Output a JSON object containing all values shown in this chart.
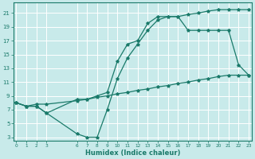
{
  "line1_x": [
    0,
    1,
    2,
    3,
    6,
    7,
    8,
    9,
    10,
    11,
    12,
    13,
    14,
    15,
    16,
    17,
    18,
    19,
    20,
    21,
    22,
    23
  ],
  "line1_y": [
    8.0,
    7.5,
    7.5,
    6.5,
    3.5,
    3.0,
    3.0,
    7.0,
    11.5,
    14.5,
    16.5,
    18.5,
    20.0,
    20.5,
    20.5,
    20.8,
    21.0,
    21.3,
    21.5,
    21.5,
    21.5,
    21.5
  ],
  "line2_x": [
    0,
    1,
    2,
    3,
    6,
    7,
    8,
    9,
    10,
    11,
    12,
    13,
    14,
    15,
    16,
    17,
    18,
    19,
    20,
    21,
    22,
    23
  ],
  "line2_y": [
    8.0,
    7.5,
    7.8,
    7.8,
    8.3,
    8.5,
    8.8,
    9.0,
    9.3,
    9.5,
    9.8,
    10.0,
    10.3,
    10.5,
    10.8,
    11.0,
    11.3,
    11.5,
    11.8,
    12.0,
    12.0,
    12.0
  ],
  "line3_x": [
    0,
    1,
    2,
    3,
    6,
    7,
    8,
    9,
    10,
    11,
    12,
    13,
    14,
    15,
    16,
    17,
    18,
    19,
    20,
    21,
    22,
    23
  ],
  "line3_y": [
    8.0,
    7.5,
    7.5,
    6.5,
    8.5,
    8.5,
    9.0,
    9.5,
    14.0,
    16.5,
    17.0,
    19.5,
    20.5,
    20.5,
    20.5,
    18.5,
    18.5,
    18.5,
    18.5,
    18.5,
    13.5,
    12.0
  ],
  "color": "#1a7a6a",
  "bg_color": "#c8eaea",
  "grid_color": "#ffffff",
  "xlabel": "Humidex (Indice chaleur)",
  "yticks": [
    3,
    5,
    7,
    9,
    11,
    13,
    15,
    17,
    19,
    21
  ],
  "xtick_positions": [
    0,
    1,
    2,
    3,
    6,
    7,
    8,
    9,
    10,
    11,
    12,
    13,
    14,
    15,
    16,
    17,
    18,
    19,
    20,
    21,
    22,
    23
  ],
  "xtick_labels": [
    "0",
    "1",
    "2",
    "3",
    "6",
    "7",
    "8",
    "9",
    "10",
    "11",
    "12",
    "13",
    "14",
    "15",
    "16",
    "17",
    "18",
    "19",
    "20",
    "21",
    "22",
    "23"
  ],
  "ylim": [
    2.5,
    22.5
  ],
  "xlim": [
    -0.3,
    23.3
  ]
}
